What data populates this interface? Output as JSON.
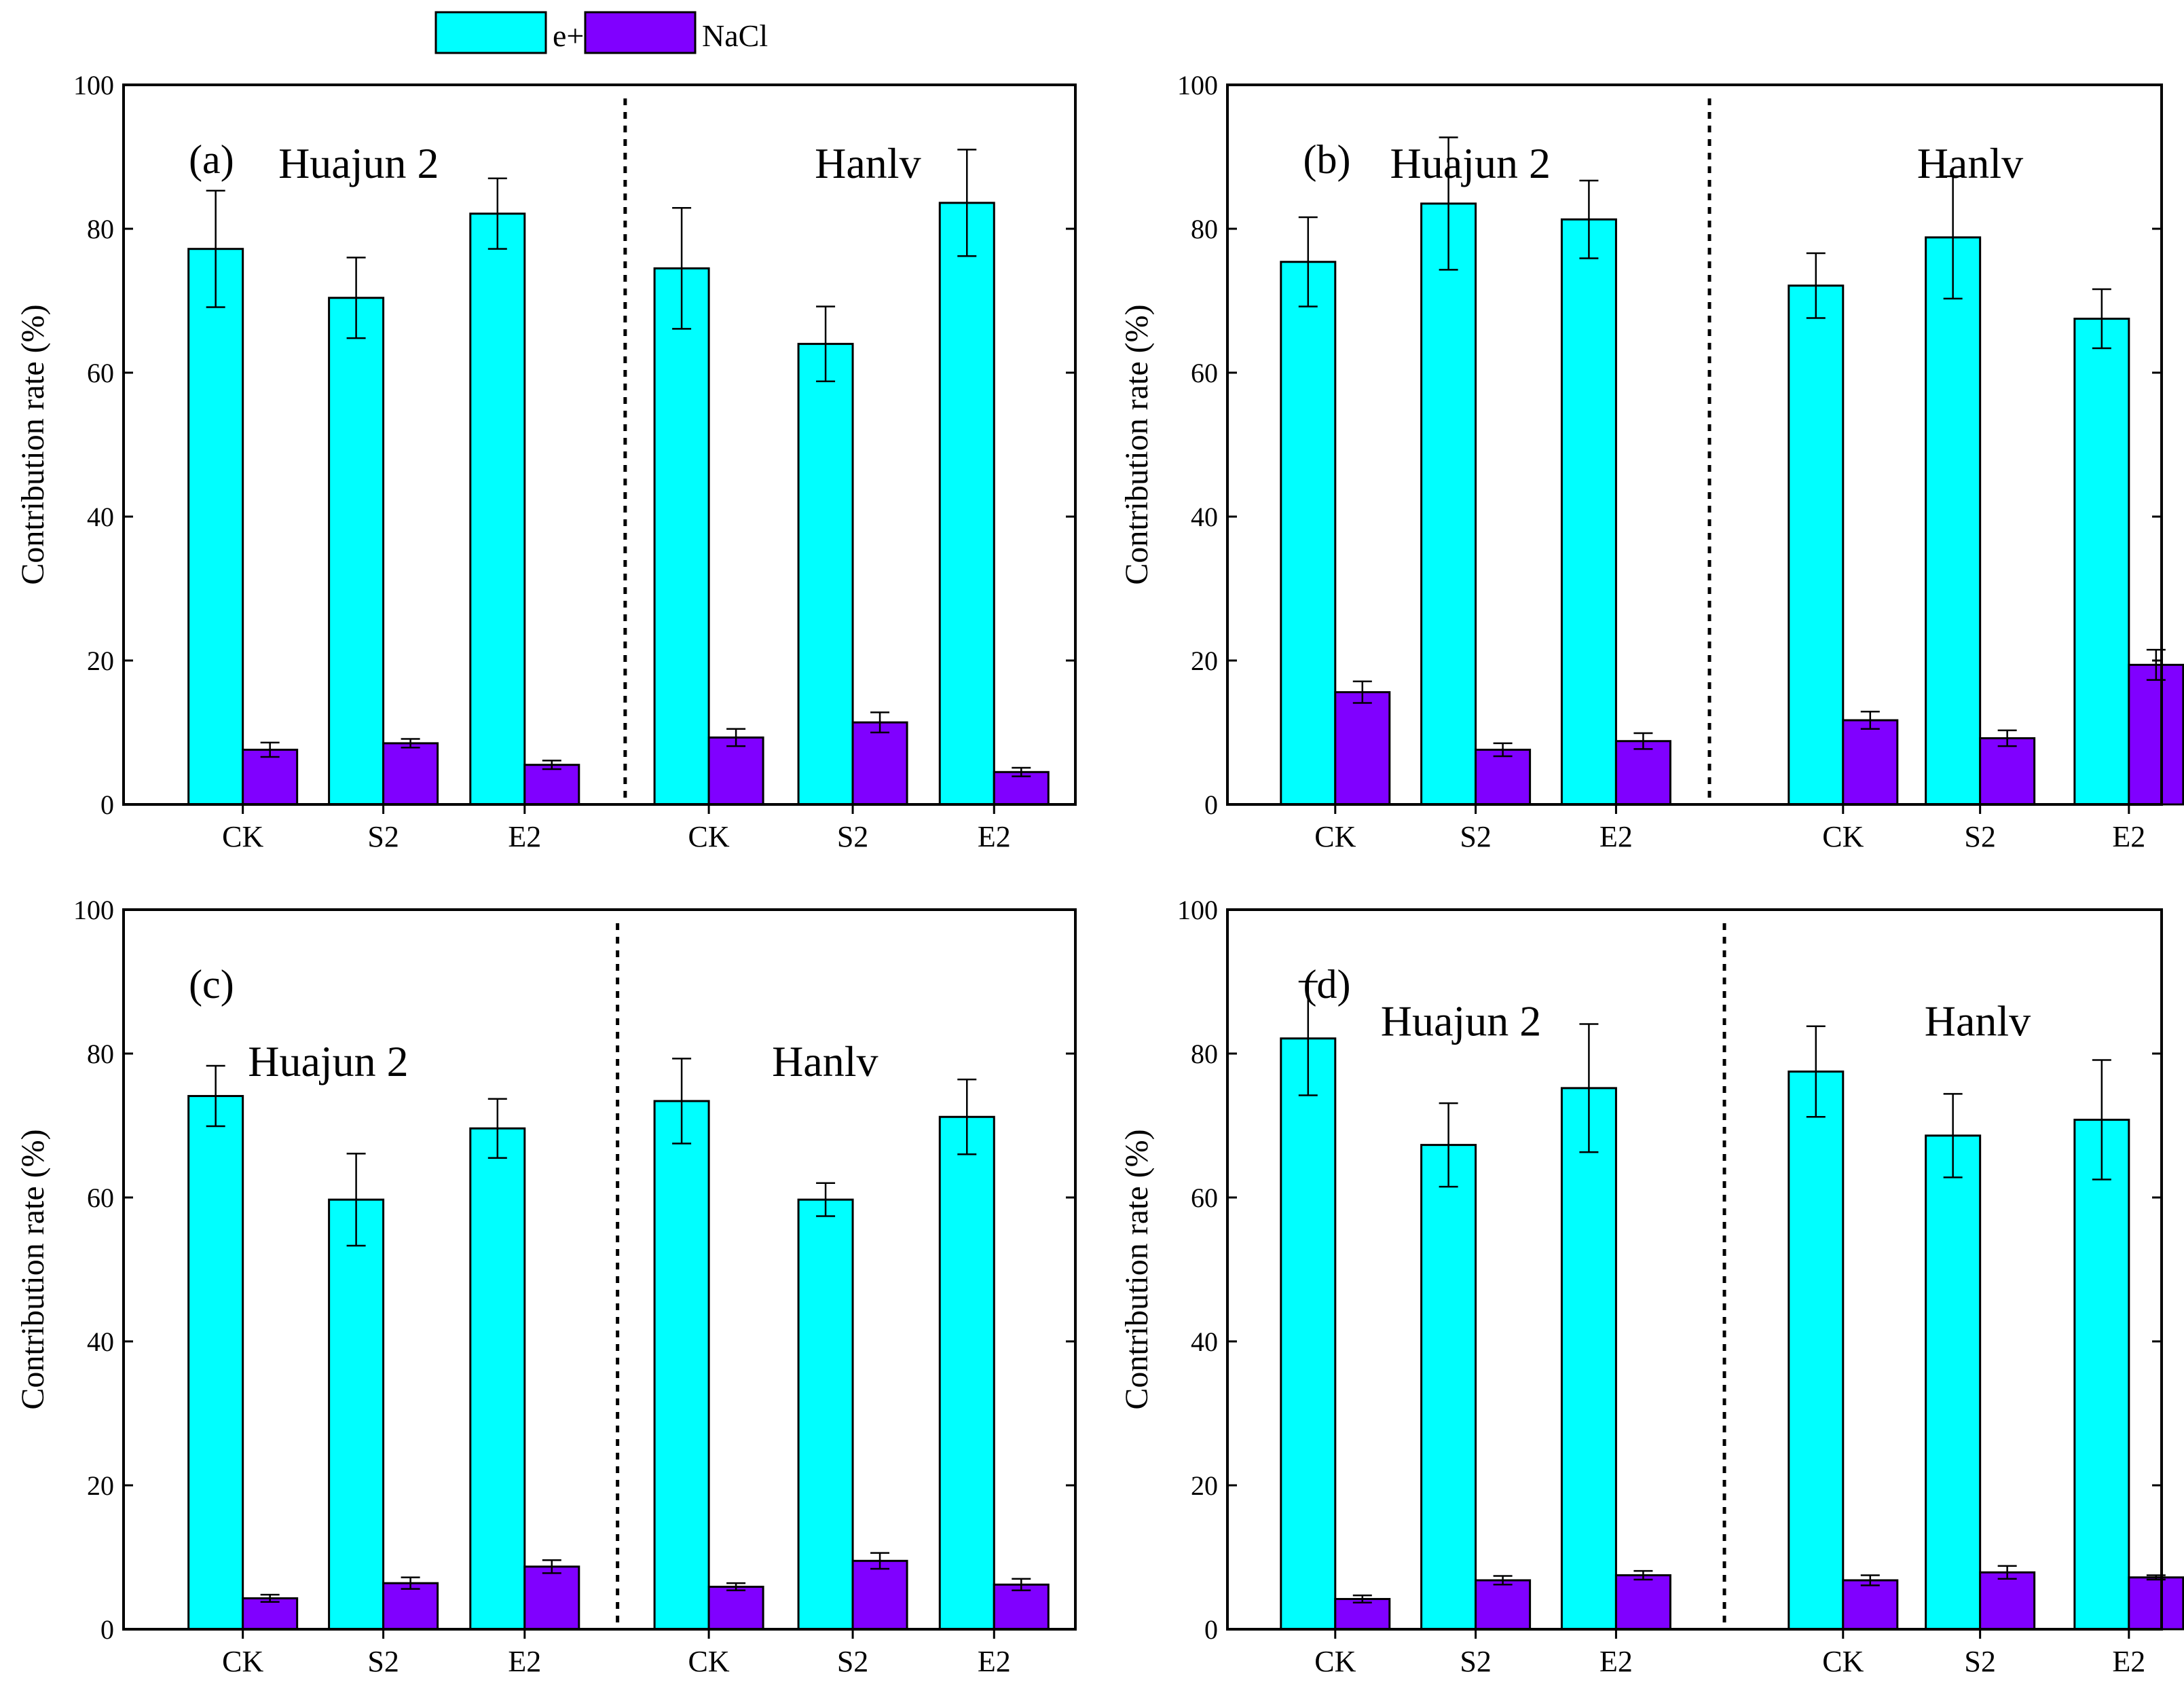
{
  "chart_data": {
    "type": "bar",
    "legend": {
      "placement": "top-center",
      "entries": [
        {
          "name": "e+d",
          "color": "#00ffff"
        },
        {
          "name": "NaCl",
          "color": "#8000ff"
        }
      ]
    },
    "panels": [
      {
        "label": "(a)",
        "ylabel": "Contribution rate (%)",
        "ylim": [
          0,
          100
        ],
        "yticks": [
          0,
          20,
          40,
          60,
          80,
          100
        ],
        "groups": [
          {
            "title": "Huajun 2",
            "categories": [
              "CK",
              "S2",
              "E2"
            ],
            "series": [
              {
                "name": "e+d",
                "values": [
                  77.2,
                  70.4,
                  82.1
                ],
                "errors": [
                  8.1,
                  5.6,
                  4.9
                ]
              },
              {
                "name": "NaCl",
                "values": [
                  7.6,
                  8.5,
                  5.5
                ],
                "errors": [
                  1.0,
                  0.6,
                  0.6
                ]
              }
            ]
          },
          {
            "title": "Hanlv",
            "categories": [
              "CK",
              "S2",
              "E2"
            ],
            "series": [
              {
                "name": "e+d",
                "values": [
                  74.5,
                  64.0,
                  83.6
                ],
                "errors": [
                  8.4,
                  5.2,
                  7.4
                ]
              },
              {
                "name": "NaCl",
                "values": [
                  9.3,
                  11.4,
                  4.5
                ],
                "errors": [
                  1.2,
                  1.4,
                  0.6
                ]
              }
            ]
          }
        ]
      },
      {
        "label": "(b)",
        "ylabel": "Contribution rate (%)",
        "ylim": [
          0,
          100
        ],
        "yticks": [
          0,
          20,
          40,
          60,
          80,
          100
        ],
        "groups": [
          {
            "title": "Huajun 2",
            "categories": [
              "CK",
              "S2",
              "E2"
            ],
            "series": [
              {
                "name": "e+d",
                "values": [
                  75.4,
                  83.5,
                  81.3
                ],
                "errors": [
                  6.2,
                  9.2,
                  5.4
                ]
              },
              {
                "name": "NaCl",
                "values": [
                  15.6,
                  7.6,
                  8.8
                ],
                "errors": [
                  1.5,
                  0.9,
                  1.1
                ]
              }
            ]
          },
          {
            "title": "Hanlv",
            "categories": [
              "CK",
              "S2",
              "E2"
            ],
            "series": [
              {
                "name": "e+d",
                "values": [
                  72.1,
                  78.8,
                  67.5
                ],
                "errors": [
                  4.5,
                  8.5,
                  4.1
                ]
              },
              {
                "name": "NaCl",
                "values": [
                  11.7,
                  9.2,
                  19.4
                ],
                "errors": [
                  1.2,
                  1.1,
                  2.1
                ]
              }
            ]
          }
        ]
      },
      {
        "label": "(c)",
        "ylabel": "Contribution rate (%)",
        "ylim": [
          0,
          100
        ],
        "yticks": [
          0,
          20,
          40,
          60,
          80,
          100
        ],
        "groups": [
          {
            "title": "Huajun 2",
            "categories": [
              "CK",
              "S2",
              "E2"
            ],
            "series": [
              {
                "name": "e+d",
                "values": [
                  74.1,
                  59.7,
                  69.6
                ],
                "errors": [
                  4.2,
                  6.4,
                  4.1
                ]
              },
              {
                "name": "NaCl",
                "values": [
                  4.3,
                  6.4,
                  8.7
                ],
                "errors": [
                  0.5,
                  0.8,
                  0.9
                ]
              }
            ]
          },
          {
            "title": "Hanlv",
            "categories": [
              "CK",
              "S2",
              "E2"
            ],
            "series": [
              {
                "name": "e+d",
                "values": [
                  73.4,
                  59.7,
                  71.2
                ],
                "errors": [
                  5.9,
                  2.3,
                  5.2
                ]
              },
              {
                "name": "NaCl",
                "values": [
                  5.9,
                  9.5,
                  6.2
                ],
                "errors": [
                  0.5,
                  1.1,
                  0.8
                ]
              }
            ]
          }
        ]
      },
      {
        "label": "(d)",
        "ylabel": "Contribution rate (%)",
        "ylim": [
          0,
          100
        ],
        "yticks": [
          0,
          20,
          40,
          60,
          80,
          100
        ],
        "groups": [
          {
            "title": "Huajun 2",
            "categories": [
              "CK",
              "S2",
              "E2"
            ],
            "series": [
              {
                "name": "e+d",
                "values": [
                  82.1,
                  67.3,
                  75.2
                ],
                "errors": [
                  7.9,
                  5.8,
                  8.9
                ]
              },
              {
                "name": "NaCl",
                "values": [
                  4.2,
                  6.8,
                  7.5
                ],
                "errors": [
                  0.5,
                  0.6,
                  0.6
                ]
              }
            ]
          },
          {
            "title": "Hanlv",
            "categories": [
              "CK",
              "S2",
              "E2"
            ],
            "series": [
              {
                "name": "e+d",
                "values": [
                  77.5,
                  68.6,
                  70.8
                ],
                "errors": [
                  6.3,
                  5.8,
                  8.3
                ]
              },
              {
                "name": "NaCl",
                "values": [
                  6.8,
                  7.9,
                  7.2
                ],
                "errors": [
                  0.7,
                  0.9,
                  0.3
                ]
              }
            ]
          }
        ]
      }
    ]
  }
}
